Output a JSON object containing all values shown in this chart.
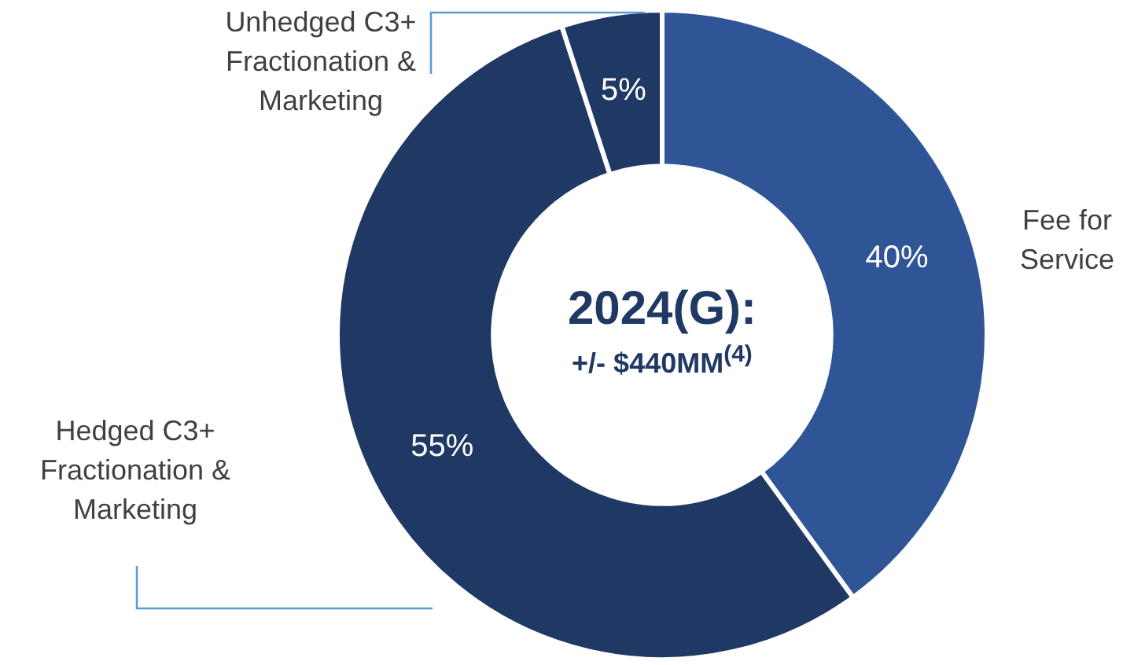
{
  "chart_data": {
    "type": "donut",
    "title": "2024(G):",
    "subtitle": "+/- $440MM$^{(4)}$",
    "categories": [
      "Fee for Service",
      "Hedged C3+ Fractionation & Marketing",
      "Unhedged C3+ Fractionation & Marketing"
    ],
    "values": [
      40,
      55,
      5
    ],
    "value_labels": [
      "40%",
      "55%",
      "5%"
    ],
    "colors": [
      "#2f5597",
      "#203864",
      "#1f3864"
    ],
    "legend": false
  }
}
